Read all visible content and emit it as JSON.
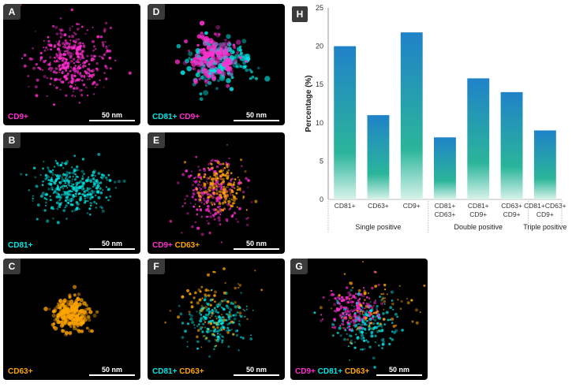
{
  "panels": [
    {
      "id": "A",
      "markers": [
        {
          "text": "CD9+",
          "color": "#ff2ed0"
        }
      ],
      "scale": "50 nm"
    },
    {
      "id": "B",
      "markers": [
        {
          "text": "CD81+",
          "color": "#00e5e5"
        }
      ],
      "scale": "50 nm"
    },
    {
      "id": "C",
      "markers": [
        {
          "text": "CD63+",
          "color": "#ffa500"
        }
      ],
      "scale": "50 nm"
    },
    {
      "id": "D",
      "markers": [
        {
          "text": "CD81+",
          "color": "#00e5e5"
        },
        {
          "text": "CD9+",
          "color": "#ff2ed0"
        }
      ],
      "scale": "50 nm"
    },
    {
      "id": "E",
      "markers": [
        {
          "text": "CD9+",
          "color": "#ff2ed0"
        },
        {
          "text": "CD63+",
          "color": "#ffa500"
        }
      ],
      "scale": "50 nm"
    },
    {
      "id": "F",
      "markers": [
        {
          "text": "CD81+",
          "color": "#00e5e5"
        },
        {
          "text": "CD63+",
          "color": "#ffa500"
        }
      ],
      "scale": "50 nm"
    },
    {
      "id": "G",
      "markers": [
        {
          "text": "CD9+",
          "color": "#ff2ed0"
        },
        {
          "text": "CD81+",
          "color": "#00e5e5"
        },
        {
          "text": "CD63+",
          "color": "#ffa500"
        }
      ],
      "scale": "50 nm"
    }
  ],
  "chart_panel_label": "H",
  "chart_data": {
    "type": "bar",
    "ylabel": "Percentage (%)",
    "ylim": [
      0,
      25
    ],
    "yticks": [
      0,
      5,
      10,
      15,
      20,
      25
    ],
    "grid": false,
    "categories": [
      [
        "CD81+"
      ],
      [
        "CD63+"
      ],
      [
        "CD9+"
      ],
      [
        "CD81+",
        "CD63+"
      ],
      [
        "CD81+",
        "CD9+"
      ],
      [
        "CD63+",
        "CD9+"
      ],
      [
        "CD81+CD63+",
        "CD9+"
      ]
    ],
    "values": [
      20.0,
      11.0,
      21.8,
      8.1,
      15.8,
      14.0,
      9.0
    ],
    "groups": [
      {
        "label": "Single positive",
        "span": [
          0,
          2
        ]
      },
      {
        "label": "Double positive",
        "span": [
          3,
          5
        ]
      },
      {
        "label": "Triple positive",
        "span": [
          6,
          6
        ]
      }
    ],
    "colors": {
      "top": "#1f82c8",
      "bottom": "#2bb59a",
      "fade": "#d8f3ea"
    }
  }
}
